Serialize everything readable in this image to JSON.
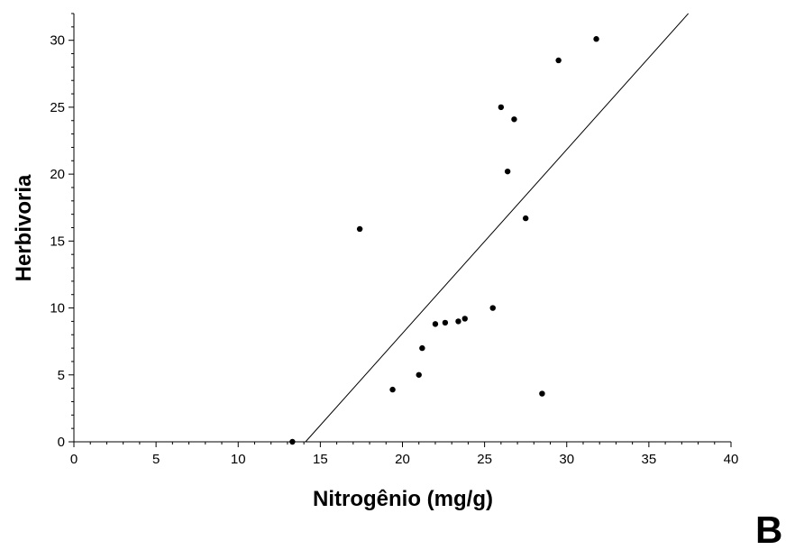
{
  "chart_data": {
    "type": "scatter",
    "xlabel": "Nitrogênio (mg/g)",
    "ylabel": "Herbivoria",
    "panel_label": "B",
    "xlim": [
      0,
      40
    ],
    "ylim": [
      0,
      32
    ],
    "x_ticks": [
      0,
      5,
      10,
      15,
      20,
      25,
      30,
      35,
      40
    ],
    "y_ticks": [
      0,
      5,
      10,
      15,
      20,
      25,
      30
    ],
    "x_tick_labels": [
      "0",
      "5",
      "10",
      "15",
      "20",
      "25",
      "30",
      "35",
      "40"
    ],
    "y_tick_labels": [
      "0",
      "5",
      "10",
      "15",
      "20",
      "25",
      "30"
    ],
    "grid": false,
    "points": [
      {
        "x": 13.3,
        "y": 0.0
      },
      {
        "x": 17.4,
        "y": 15.9
      },
      {
        "x": 19.4,
        "y": 3.9
      },
      {
        "x": 21.0,
        "y": 5.0
      },
      {
        "x": 21.2,
        "y": 7.0
      },
      {
        "x": 22.0,
        "y": 8.8
      },
      {
        "x": 22.6,
        "y": 8.9
      },
      {
        "x": 23.4,
        "y": 9.0
      },
      {
        "x": 23.8,
        "y": 9.2
      },
      {
        "x": 25.5,
        "y": 10.0
      },
      {
        "x": 26.0,
        "y": 25.0
      },
      {
        "x": 26.4,
        "y": 20.2
      },
      {
        "x": 26.8,
        "y": 24.1
      },
      {
        "x": 27.5,
        "y": 16.7
      },
      {
        "x": 28.5,
        "y": 3.6
      },
      {
        "x": 29.5,
        "y": 28.5
      },
      {
        "x": 31.8,
        "y": 30.1
      }
    ],
    "fit_line": {
      "x": [
        14.1,
        37.4
      ],
      "y": [
        0.0,
        32.0
      ]
    }
  }
}
